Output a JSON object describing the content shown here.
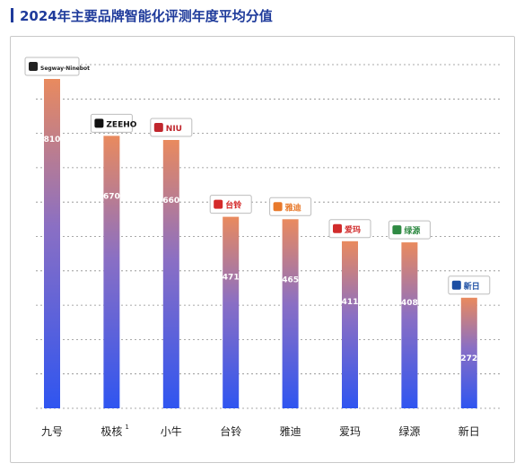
{
  "header": {
    "title": "2024年主要品牌智能化评测年度平均分值"
  },
  "chart_data": {
    "type": "bar",
    "title": "2024年主要品牌智能化评测年度平均分值",
    "categories": [
      "九号",
      "极核",
      "小牛",
      "台铃",
      "雅迪",
      "爱玛",
      "绿源",
      "新日"
    ],
    "category_superscripts": [
      "",
      "1",
      "",
      "",
      "",
      "",
      "",
      ""
    ],
    "values": [
      810,
      670,
      660,
      471,
      465,
      411,
      408,
      272
    ],
    "value_labels": [
      "810",
      "670",
      "660",
      "471",
      "465",
      "411",
      "408",
      "272"
    ],
    "brand_logos": [
      {
        "icon": "ninebot-logo",
        "text": "Segway·Ninebot",
        "color": "#222222"
      },
      {
        "icon": "zeeho-logo",
        "text": "ZEEHO",
        "color": "#111111"
      },
      {
        "icon": "niu-logo",
        "text": "NIU",
        "color": "#c0262d"
      },
      {
        "icon": "tailg-logo",
        "text": "台铃",
        "color": "#d42a2a"
      },
      {
        "icon": "yadea-logo",
        "text": "雅迪",
        "color": "#e8792b"
      },
      {
        "icon": "aima-logo",
        "text": "爱玛",
        "color": "#d12b2b"
      },
      {
        "icon": "luyuan-logo",
        "text": "绿源",
        "color": "#2f8a43"
      },
      {
        "icon": "sunra-logo",
        "text": "新日",
        "color": "#1d4fa3"
      }
    ],
    "ylim": [
      0,
      900
    ],
    "grid": true,
    "legend": "none",
    "colors": {
      "bar_top": "#e98a5e",
      "bar_mid": "#8a6fc4",
      "bar_bottom": "#2f55f0",
      "grid": "#8c8c8c",
      "title": "#1f3b9b"
    }
  }
}
